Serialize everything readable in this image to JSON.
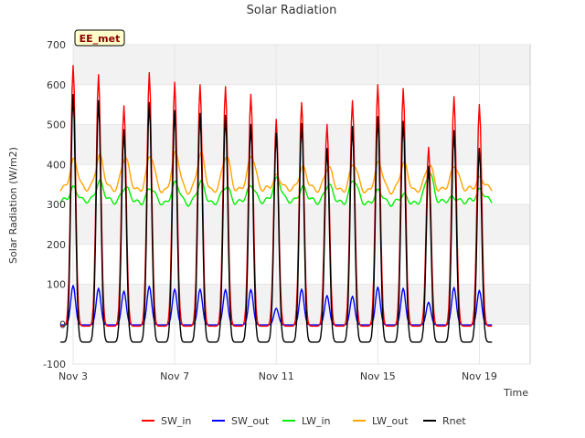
{
  "chart_data": {
    "type": "line",
    "title": "Solar Radiation",
    "xlabel": "Time",
    "ylabel": "Solar Radiation (W/m2)",
    "badge": "EE_met",
    "x_ticks": [
      "Nov 3",
      "Nov 7",
      "Nov 11",
      "Nov 15",
      "Nov 19"
    ],
    "y_ticks": [
      -100,
      0,
      100,
      200,
      300,
      400,
      500,
      600,
      700
    ],
    "xlim_days": [
      3.0,
      21.0
    ],
    "ylim": [
      -100,
      700
    ],
    "grid": true,
    "legend_position": "bottom",
    "x_unit": "day of November (noon peaks)",
    "series": [
      {
        "name": "SW_in",
        "color": "#ff0000",
        "daily_peaks": [
          {
            "day": "Nov 3",
            "value": 648
          },
          {
            "day": "Nov 4",
            "value": 625
          },
          {
            "day": "Nov 5",
            "value": 547
          },
          {
            "day": "Nov 6",
            "value": 630
          },
          {
            "day": "Nov 7",
            "value": 606
          },
          {
            "day": "Nov 8",
            "value": 600
          },
          {
            "day": "Nov 9",
            "value": 595
          },
          {
            "day": "Nov 10",
            "value": 576
          },
          {
            "day": "Nov 11",
            "value": 513
          },
          {
            "day": "Nov 12",
            "value": 555
          },
          {
            "day": "Nov 13",
            "value": 500
          },
          {
            "day": "Nov 14",
            "value": 560
          },
          {
            "day": "Nov 15",
            "value": 600
          },
          {
            "day": "Nov 16",
            "value": 590
          },
          {
            "day": "Nov 17",
            "value": 443
          },
          {
            "day": "Nov 18",
            "value": 570
          },
          {
            "day": "Nov 19",
            "value": 550
          }
        ],
        "night_value": -5
      },
      {
        "name": "SW_out",
        "color": "#0000ff",
        "daily_peaks": [
          {
            "day": "Nov 3",
            "value": 97
          },
          {
            "day": "Nov 4",
            "value": 90
          },
          {
            "day": "Nov 5",
            "value": 83
          },
          {
            "day": "Nov 6",
            "value": 95
          },
          {
            "day": "Nov 7",
            "value": 88
          },
          {
            "day": "Nov 8",
            "value": 88
          },
          {
            "day": "Nov 9",
            "value": 87
          },
          {
            "day": "Nov 10",
            "value": 87
          },
          {
            "day": "Nov 11",
            "value": 40
          },
          {
            "day": "Nov 12",
            "value": 88
          },
          {
            "day": "Nov 13",
            "value": 72
          },
          {
            "day": "Nov 14",
            "value": 70
          },
          {
            "day": "Nov 15",
            "value": 93
          },
          {
            "day": "Nov 16",
            "value": 90
          },
          {
            "day": "Nov 17",
            "value": 55
          },
          {
            "day": "Nov 18",
            "value": 92
          },
          {
            "day": "Nov 19",
            "value": 85
          }
        ],
        "night_value": -2
      },
      {
        "name": "LW_in",
        "color": "#00ee00",
        "daily_levels": [
          {
            "day": "Nov 3",
            "value": 345
          },
          {
            "day": "Nov 4",
            "value": 360
          },
          {
            "day": "Nov 5",
            "value": 345
          },
          {
            "day": "Nov 6",
            "value": 340
          },
          {
            "day": "Nov 7",
            "value": 350
          },
          {
            "day": "Nov 8",
            "value": 352
          },
          {
            "day": "Nov 9",
            "value": 345
          },
          {
            "day": "Nov 10",
            "value": 350
          },
          {
            "day": "Nov 11",
            "value": 368
          },
          {
            "day": "Nov 12",
            "value": 345
          },
          {
            "day": "Nov 13",
            "value": 350
          },
          {
            "day": "Nov 14",
            "value": 360
          },
          {
            "day": "Nov 15",
            "value": 330
          },
          {
            "day": "Nov 16",
            "value": 320
          },
          {
            "day": "Nov 17",
            "value": 380
          },
          {
            "day": "Nov 18",
            "value": 320
          },
          {
            "day": "Nov 19",
            "value": 340
          }
        ],
        "night_value": 305
      },
      {
        "name": "LW_out",
        "color": "#ffa500",
        "daily_levels": [
          {
            "day": "Nov 3",
            "value": 415
          },
          {
            "day": "Nov 4",
            "value": 425
          },
          {
            "day": "Nov 5",
            "value": 420
          },
          {
            "day": "Nov 6",
            "value": 422
          },
          {
            "day": "Nov 7",
            "value": 425
          },
          {
            "day": "Nov 8",
            "value": 423
          },
          {
            "day": "Nov 9",
            "value": 422
          },
          {
            "day": "Nov 10",
            "value": 425
          },
          {
            "day": "Nov 11",
            "value": 375
          },
          {
            "day": "Nov 12",
            "value": 395
          },
          {
            "day": "Nov 13",
            "value": 395
          },
          {
            "day": "Nov 14",
            "value": 400
          },
          {
            "day": "Nov 15",
            "value": 400
          },
          {
            "day": "Nov 16",
            "value": 400
          },
          {
            "day": "Nov 17",
            "value": 400
          },
          {
            "day": "Nov 18",
            "value": 400
          },
          {
            "day": "Nov 19",
            "value": 370
          }
        ],
        "night_value": 335
      },
      {
        "name": "Rnet",
        "color": "#000000",
        "daily_peaks": [
          {
            "day": "Nov 3",
            "value": 575
          },
          {
            "day": "Nov 4",
            "value": 560
          },
          {
            "day": "Nov 5",
            "value": 487
          },
          {
            "day": "Nov 6",
            "value": 555
          },
          {
            "day": "Nov 7",
            "value": 535
          },
          {
            "day": "Nov 8",
            "value": 528
          },
          {
            "day": "Nov 9",
            "value": 523
          },
          {
            "day": "Nov 10",
            "value": 500
          },
          {
            "day": "Nov 11",
            "value": 478
          },
          {
            "day": "Nov 12",
            "value": 502
          },
          {
            "day": "Nov 13",
            "value": 440
          },
          {
            "day": "Nov 14",
            "value": 495
          },
          {
            "day": "Nov 15",
            "value": 520
          },
          {
            "day": "Nov 16",
            "value": 508
          },
          {
            "day": "Nov 17",
            "value": 395
          },
          {
            "day": "Nov 18",
            "value": 485
          },
          {
            "day": "Nov 19",
            "value": 440
          }
        ],
        "night_value": -45
      }
    ]
  }
}
